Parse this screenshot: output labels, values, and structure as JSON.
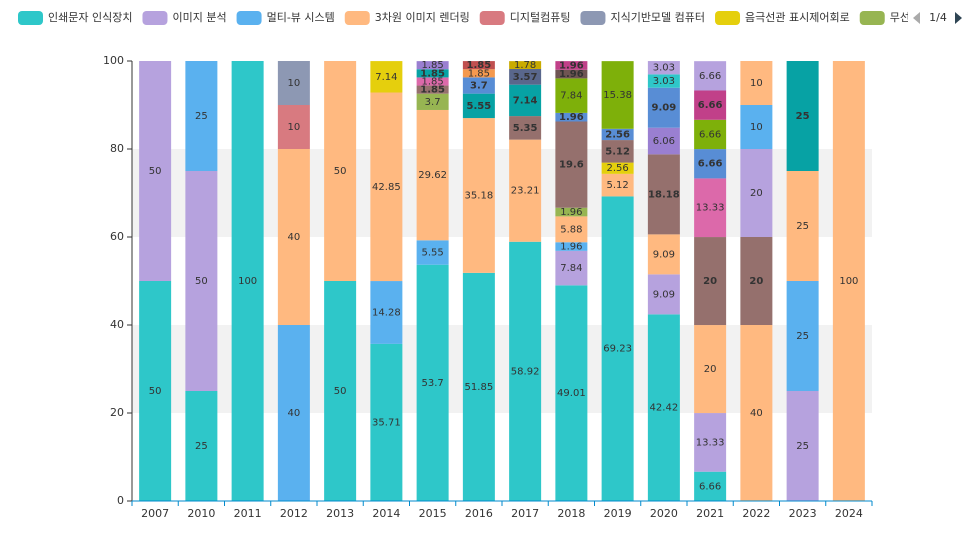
{
  "chart_data": {
    "type": "stacked_bar",
    "categories": [
      "2007",
      "2010",
      "2011",
      "2012",
      "2013",
      "2014",
      "2015",
      "2016",
      "2017",
      "2018",
      "2019",
      "2020",
      "2021",
      "2022",
      "2023",
      "2024"
    ],
    "ylim": [
      0,
      100
    ],
    "yticks": [
      0,
      20,
      40,
      60,
      80,
      100
    ],
    "split_area": true,
    "legend_position": "top",
    "legend_page": "1/4",
    "series": [
      {
        "name": "인쇄문자 인식장치",
        "color": "#2ec7c9",
        "values": [
          50,
          25,
          100,
          null,
          50,
          35.71,
          53.7,
          51.85,
          58.92,
          49.01,
          69.23,
          42.42,
          6.66,
          null,
          null,
          null
        ]
      },
      {
        "name": "이미지 분석",
        "color": "#b6a2de",
        "values": [
          50,
          50,
          null,
          null,
          null,
          null,
          null,
          null,
          null,
          7.84,
          null,
          9.09,
          13.33,
          null,
          25,
          null
        ]
      },
      {
        "name": "멀티-뷰 시스템",
        "color": "#5ab1ef",
        "values": [
          null,
          25,
          null,
          40,
          null,
          14.28,
          5.55,
          null,
          null,
          1.96,
          null,
          null,
          null,
          null,
          25,
          null
        ]
      },
      {
        "name": "3차원 이미지 렌더링",
        "color": "#ffb980",
        "values": [
          null,
          null,
          null,
          40,
          50,
          42.85,
          29.62,
          35.18,
          23.21,
          5.88,
          5.12,
          9.09,
          20,
          40,
          25,
          100
        ]
      },
      {
        "name": "디지털컴퓨팅",
        "color": "#d87a80",
        "values": [
          null,
          null,
          null,
          10,
          null,
          null,
          null,
          null,
          null,
          null,
          null,
          null,
          null,
          null,
          null,
          null
        ]
      },
      {
        "name": "지식기반모델 컴퓨터",
        "color": "#8d98b3",
        "values": [
          null,
          null,
          null,
          10,
          null,
          null,
          null,
          null,
          null,
          null,
          null,
          null,
          null,
          null,
          null,
          null
        ]
      },
      {
        "name": "음극선관 표시제어회로",
        "color": "#e5cf0d",
        "values": [
          null,
          null,
          null,
          null,
          null,
          7.14,
          null,
          null,
          null,
          null,
          2.56,
          null,
          null,
          null,
          null,
          null
        ]
      },
      {
        "name": "무선통신 네트워크 서비스",
        "color": "#97b552",
        "values": [
          null,
          null,
          null,
          null,
          null,
          null,
          3.7,
          null,
          null,
          1.96,
          null,
          null,
          null,
          null,
          null,
          null
        ]
      },
      {
        "color": "#95706d",
        "values": [
          null,
          null,
          null,
          null,
          null,
          null,
          1.85,
          null,
          5.35,
          19.6,
          5.12,
          18.18,
          20,
          20,
          null,
          null
        ]
      },
      {
        "color": "#dc69aa",
        "values": [
          null,
          null,
          null,
          null,
          null,
          null,
          1.85,
          null,
          null,
          null,
          null,
          null,
          13.33,
          null,
          null,
          null
        ]
      },
      {
        "color": "#07a2a4",
        "values": [
          null,
          null,
          null,
          null,
          null,
          null,
          1.85,
          5.55,
          7.14,
          null,
          null,
          null,
          null,
          null,
          25,
          null
        ]
      },
      {
        "color": "#9a7fd1",
        "values": [
          null,
          null,
          null,
          null,
          null,
          null,
          1.85,
          null,
          null,
          null,
          null,
          6.06,
          null,
          null,
          null,
          null
        ]
      },
      {
        "color": "#588dd5",
        "values": [
          null,
          null,
          null,
          null,
          null,
          null,
          null,
          3.7,
          null,
          1.96,
          2.56,
          9.09,
          6.66,
          null,
          null,
          null
        ]
      },
      {
        "color": "#f5994e",
        "values": [
          null,
          null,
          null,
          null,
          null,
          null,
          null,
          1.85,
          null,
          null,
          null,
          null,
          null,
          null,
          null,
          null
        ]
      },
      {
        "color": "#c05050",
        "values": [
          null,
          null,
          null,
          null,
          null,
          null,
          null,
          1.85,
          null,
          null,
          null,
          null,
          null,
          null,
          null,
          null
        ]
      },
      {
        "color": "#59678c",
        "values": [
          null,
          null,
          null,
          null,
          null,
          null,
          null,
          null,
          3.57,
          null,
          null,
          null,
          null,
          null,
          null,
          null
        ]
      },
      {
        "color": "#c9ab00",
        "values": [
          null,
          null,
          null,
          null,
          null,
          null,
          null,
          null,
          1.78,
          null,
          null,
          null,
          null,
          null,
          null,
          null
        ]
      },
      {
        "color": "#7eb00a",
        "values": [
          null,
          null,
          null,
          null,
          null,
          null,
          null,
          null,
          null,
          7.84,
          15.38,
          null,
          6.66,
          null,
          null,
          null
        ]
      },
      {
        "color": "#6f5553",
        "values": [
          null,
          null,
          null,
          null,
          null,
          null,
          null,
          null,
          null,
          1.96,
          null,
          null,
          null,
          null,
          null,
          null
        ]
      },
      {
        "color": "#c14089",
        "values": [
          null,
          null,
          null,
          null,
          null,
          null,
          null,
          null,
          null,
          1.96,
          null,
          null,
          6.66,
          null,
          null,
          null
        ]
      },
      {
        "color": "#2ec7c9",
        "values": [
          null,
          null,
          null,
          null,
          null,
          null,
          null,
          null,
          null,
          null,
          null,
          3.03,
          null,
          null,
          null,
          null
        ]
      },
      {
        "color": "#b6a2de",
        "values": [
          null,
          null,
          null,
          null,
          null,
          null,
          null,
          null,
          null,
          null,
          null,
          3.03,
          6.66,
          20,
          null,
          null
        ]
      },
      {
        "color": "#5ab1ef",
        "values": [
          null,
          null,
          null,
          null,
          null,
          null,
          null,
          null,
          null,
          null,
          null,
          null,
          null,
          10,
          null,
          null
        ]
      },
      {
        "color": "#ffb980",
        "values": [
          null,
          null,
          null,
          null,
          null,
          null,
          null,
          null,
          null,
          null,
          null,
          null,
          null,
          10,
          null,
          null
        ]
      }
    ]
  }
}
